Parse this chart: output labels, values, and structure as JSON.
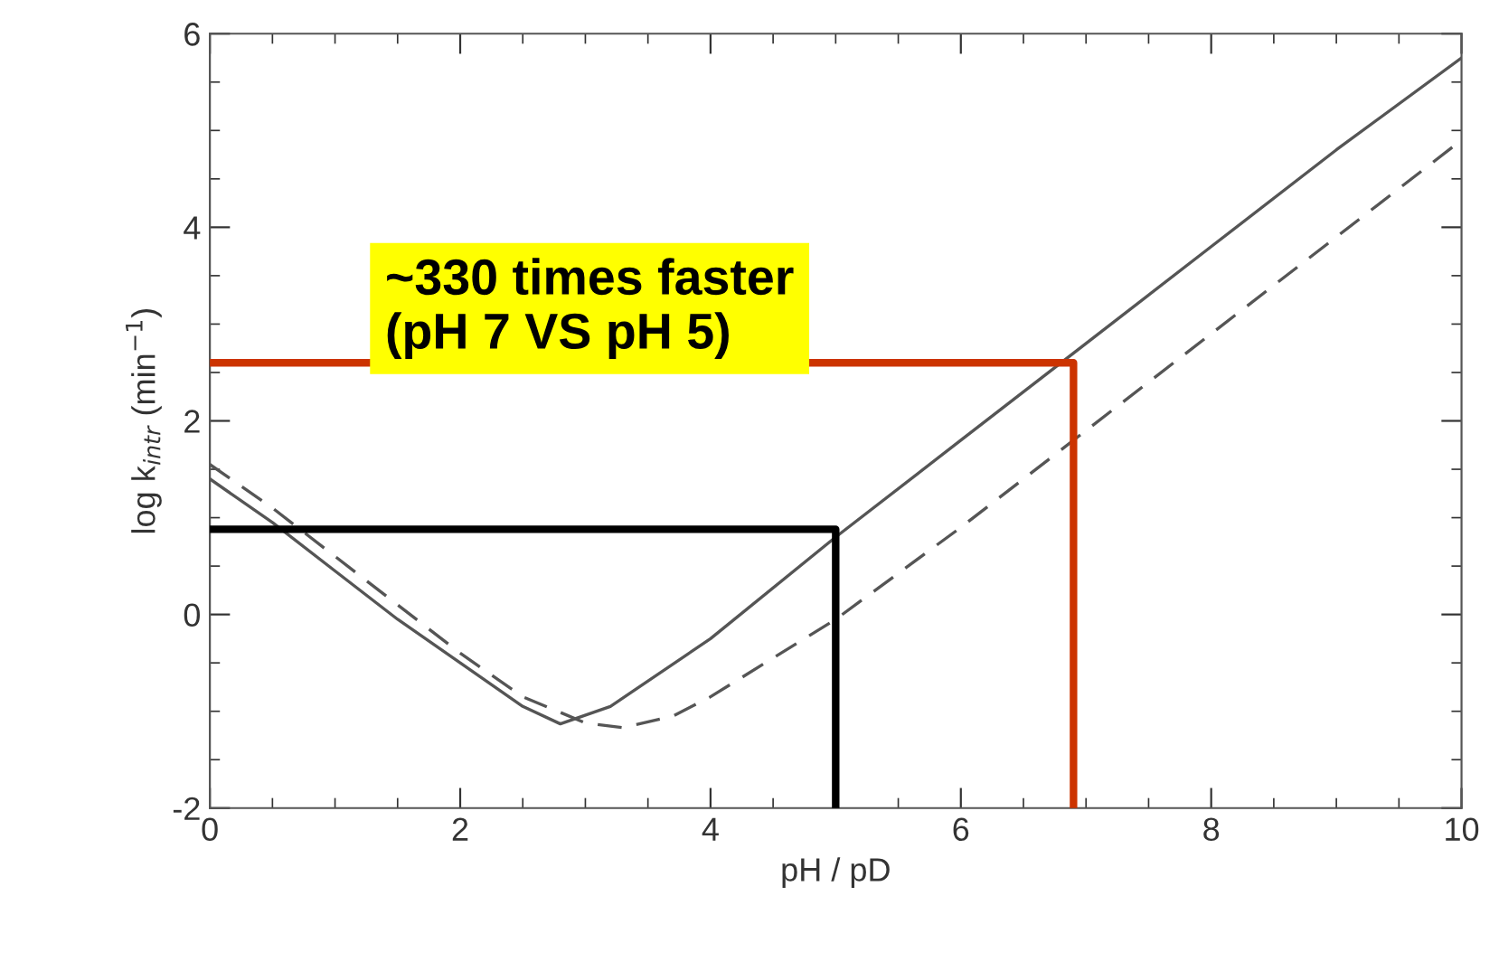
{
  "chart_data": {
    "type": "line",
    "xlabel": "pH / pD",
    "ylabel": "log k$_{intr}$ (min$^{−1}$)",
    "xlim": [
      0,
      10
    ],
    "ylim": [
      -2,
      6
    ],
    "xticks": [
      0,
      2,
      4,
      6,
      8,
      10
    ],
    "yticks": [
      -2,
      0,
      2,
      4,
      6
    ],
    "grid": false,
    "annotations": [
      "~330 times faster\n(pH 7 VS pH 5)"
    ],
    "series": [
      {
        "color": "#555555",
        "line_style": "solid",
        "x": [
          0,
          0.5,
          1,
          1.5,
          2,
          2.5,
          2.8,
          3.2,
          4,
          5,
          6,
          7,
          8,
          9,
          10
        ],
        "values": [
          1.4,
          0.95,
          0.45,
          -0.05,
          -0.5,
          -0.95,
          -1.13,
          -0.95,
          -0.25,
          0.8,
          1.8,
          2.8,
          3.8,
          4.8,
          5.75
        ]
      },
      {
        "color": "#555555",
        "line_style": "dashed",
        "x": [
          0,
          0.5,
          1,
          1.5,
          2,
          2.5,
          3,
          3.3,
          3.7,
          4,
          5,
          6,
          7,
          8,
          9,
          10
        ],
        "values": [
          1.55,
          1.1,
          0.6,
          0.1,
          -0.4,
          -0.85,
          -1.12,
          -1.17,
          -1.05,
          -0.85,
          -0.05,
          0.9,
          1.9,
          2.9,
          3.9,
          4.9
        ]
      },
      {
        "color": "#cc3300",
        "line_style": "solid",
        "x": [
          0,
          6.9,
          6.9
        ],
        "values": [
          2.6,
          2.6,
          -2
        ]
      },
      {
        "color": "#000000",
        "line_style": "solid",
        "x": [
          0,
          5,
          5
        ],
        "values": [
          0.88,
          0.88,
          -2
        ]
      }
    ]
  }
}
